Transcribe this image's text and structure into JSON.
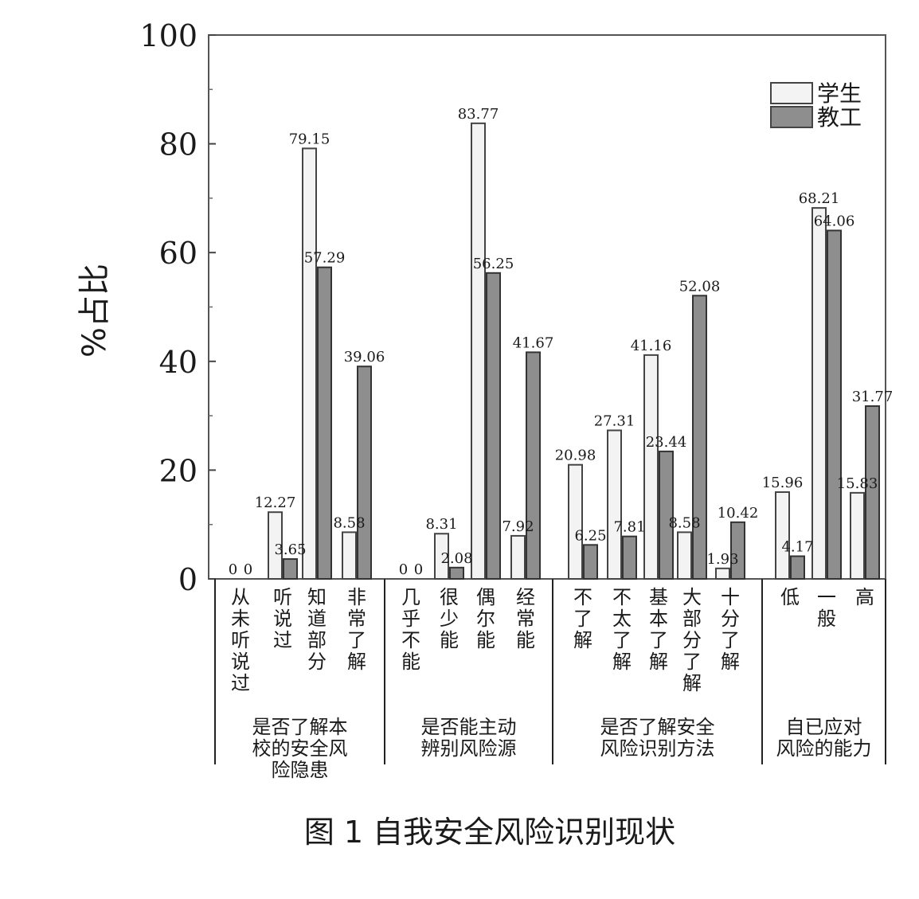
{
  "chart_data": {
    "type": "bar",
    "ylabel": "%占比",
    "ylim": [
      0,
      100
    ],
    "yticks": [
      0,
      20,
      40,
      60,
      80,
      100
    ],
    "grid": false,
    "legend_position": "top-right",
    "legend": [
      "学生",
      "教工"
    ],
    "colors": {
      "学生": "#f3f3f3",
      "教工": "#8e8e8e"
    },
    "groups": [
      {
        "label": "是否了解本校的安全风险隐患",
        "label_lines": [
          "是否了解本",
          "校的安全风",
          "险隐患"
        ],
        "categories": [
          "从未听说过",
          "听说过",
          "知道部分",
          "非常了解"
        ],
        "category_lines": [
          [
            "从",
            "未",
            "听",
            "说",
            "过"
          ],
          [
            "听",
            "说",
            "过"
          ],
          [
            "知",
            "道",
            "部",
            "分"
          ],
          [
            "非",
            "常",
            "了",
            "解"
          ]
        ],
        "student": [
          0,
          12.27,
          79.15,
          8.58
        ],
        "staff": [
          0,
          3.65,
          57.29,
          39.06
        ],
        "student_labels": [
          "0",
          "12.27",
          "79.15",
          "8.58"
        ],
        "staff_labels": [
          "0",
          "3.65",
          "57.29",
          "39.06"
        ]
      },
      {
        "label": "是否能主动辨别风险源",
        "label_lines": [
          "是否能主动",
          "辨别风险源"
        ],
        "categories": [
          "几乎不能",
          "很少能",
          "偶尔能",
          "经常能"
        ],
        "category_lines": [
          [
            "几",
            "乎",
            "不",
            "能"
          ],
          [
            "很",
            "少",
            "能"
          ],
          [
            "偶",
            "尔",
            "能"
          ],
          [
            "经",
            "常",
            "能"
          ]
        ],
        "student": [
          0,
          8.31,
          83.77,
          7.92
        ],
        "staff": [
          0,
          2.08,
          56.25,
          41.67
        ],
        "student_labels": [
          "0",
          "8.31",
          "83.77",
          "7.92"
        ],
        "staff_labels": [
          "0",
          "2.08",
          "56.25",
          "41.67"
        ]
      },
      {
        "label": "是否了解安全风险识别方法",
        "label_lines": [
          "是否了解安全",
          "风险识别方法"
        ],
        "categories": [
          "不了解",
          "不太了解",
          "基本了解",
          "大部分了解",
          "十分了解"
        ],
        "category_lines": [
          [
            "不",
            "了",
            "解"
          ],
          [
            "不",
            "太",
            "了",
            "解"
          ],
          [
            "基",
            "本",
            "了",
            "解"
          ],
          [
            "大",
            "部",
            "分",
            "了",
            "解"
          ],
          [
            "十",
            "分",
            "了",
            "解"
          ]
        ],
        "student": [
          20.98,
          27.31,
          41.16,
          8.58,
          1.93
        ],
        "staff": [
          6.25,
          7.81,
          23.44,
          52.08,
          10.42
        ],
        "student_labels": [
          "20.98",
          "27.31",
          "41.16",
          "8.58",
          "1.93"
        ],
        "staff_labels": [
          "6.25",
          "7.81",
          "23.44",
          "52.08",
          "10.42"
        ]
      },
      {
        "label": "自己应对风险的能力",
        "label_lines": [
          "自已应对",
          "风险的能力"
        ],
        "categories": [
          "低",
          "一般",
          "高"
        ],
        "category_lines": [
          [
            "低"
          ],
          [
            "一",
            "般"
          ],
          [
            "高"
          ]
        ],
        "student": [
          15.96,
          68.21,
          15.83
        ],
        "staff": [
          4.17,
          64.06,
          31.77
        ],
        "student_labels": [
          "15.96",
          "68.21",
          "15.83"
        ],
        "staff_labels": [
          "4.17",
          "64.06",
          "31.77"
        ]
      }
    ]
  },
  "caption": "图 1   自我安全风险识别现状"
}
